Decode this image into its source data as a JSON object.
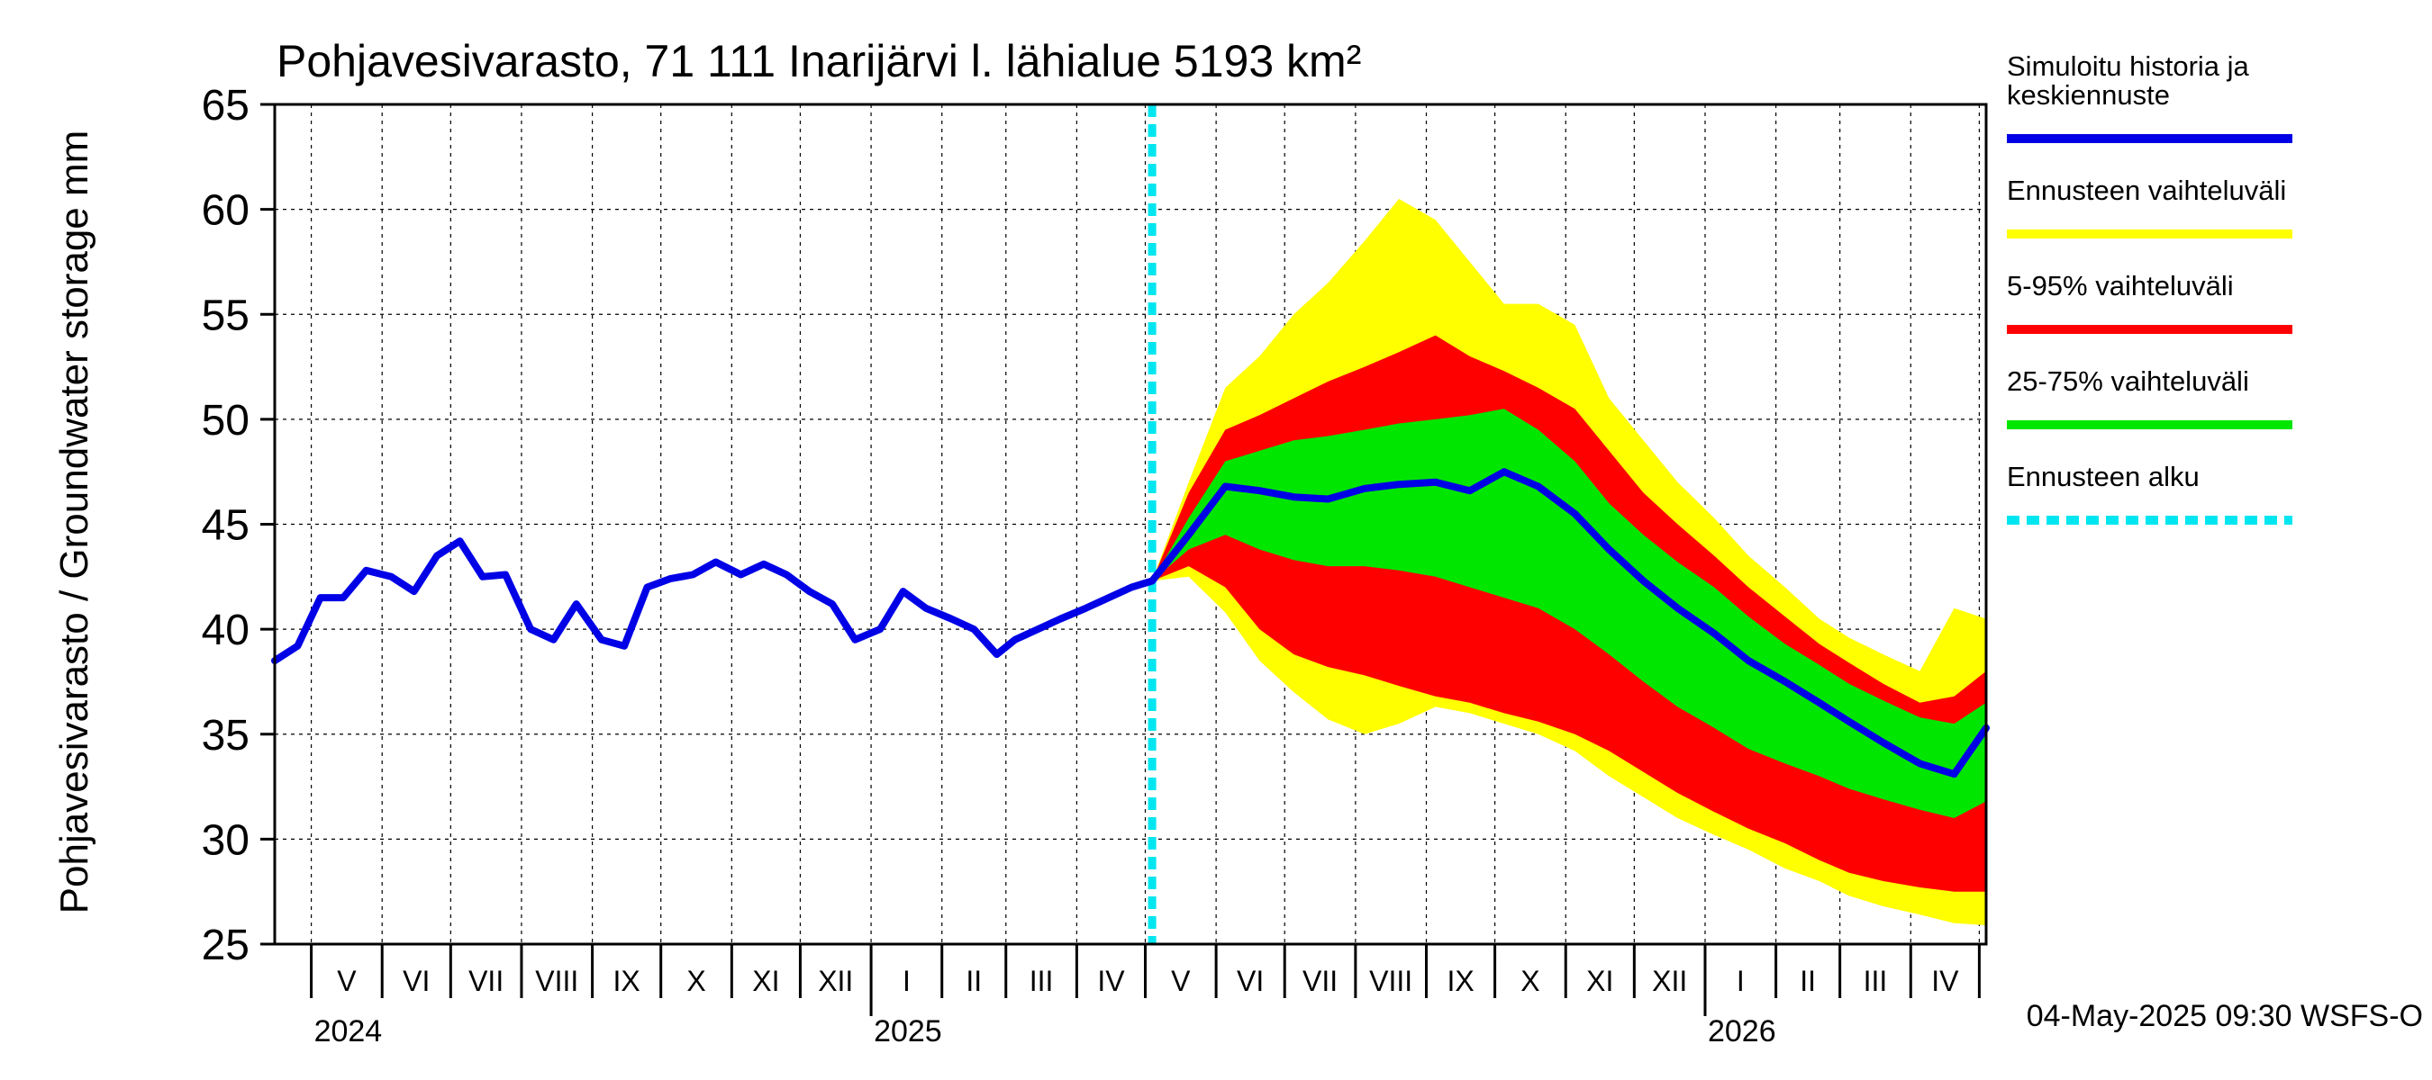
{
  "chart_data": {
    "type": "area",
    "title": "Pohjavesivarasto, 71 111 Inarijärvi l. lähialue 5193 km²",
    "ylabel": "Pohjavesivarasto / Groundwater storage   mm",
    "ylim": [
      25,
      65
    ],
    "yticks": [
      25,
      30,
      35,
      40,
      45,
      50,
      55,
      60,
      65
    ],
    "xlim": [
      "2024-04-15",
      "2026-05-04"
    ],
    "grid": true,
    "forecast_start": "2025-05-04",
    "months": [
      {
        "label": "V",
        "start": "2024-05-01"
      },
      {
        "label": "VI",
        "start": "2024-06-01"
      },
      {
        "label": "VII",
        "start": "2024-07-01"
      },
      {
        "label": "VIII",
        "start": "2024-08-01"
      },
      {
        "label": "IX",
        "start": "2024-09-01"
      },
      {
        "label": "X",
        "start": "2024-10-01"
      },
      {
        "label": "XI",
        "start": "2024-11-01"
      },
      {
        "label": "XII",
        "start": "2024-12-01"
      },
      {
        "label": "I",
        "start": "2025-01-01"
      },
      {
        "label": "II",
        "start": "2025-02-01"
      },
      {
        "label": "III",
        "start": "2025-03-01"
      },
      {
        "label": "IV",
        "start": "2025-04-01"
      },
      {
        "label": "V",
        "start": "2025-05-01"
      },
      {
        "label": "VI",
        "start": "2025-06-01"
      },
      {
        "label": "VII",
        "start": "2025-07-01"
      },
      {
        "label": "VIII",
        "start": "2025-08-01"
      },
      {
        "label": "IX",
        "start": "2025-09-01"
      },
      {
        "label": "X",
        "start": "2025-10-01"
      },
      {
        "label": "XI",
        "start": "2025-11-01"
      },
      {
        "label": "XII",
        "start": "2025-12-01"
      },
      {
        "label": "I",
        "start": "2026-01-01"
      },
      {
        "label": "II",
        "start": "2026-02-01"
      },
      {
        "label": "III",
        "start": "2026-03-01"
      },
      {
        "label": "IV",
        "start": "2026-04-01"
      }
    ],
    "month_end": "2026-05-01",
    "years": [
      {
        "label": "2024",
        "date": "2024-05-01"
      },
      {
        "label": "2025",
        "date": "2025-01-01"
      },
      {
        "label": "2026",
        "date": "2026-01-01"
      }
    ],
    "history": {
      "name": "Simuloitu historia ja keskiennuste",
      "x": [
        "2024-04-15",
        "2024-04-25",
        "2024-05-05",
        "2024-05-15",
        "2024-05-25",
        "2024-06-05",
        "2024-06-15",
        "2024-06-25",
        "2024-07-05",
        "2024-07-15",
        "2024-07-25",
        "2024-08-05",
        "2024-08-15",
        "2024-08-25",
        "2024-09-05",
        "2024-09-15",
        "2024-09-25",
        "2024-10-05",
        "2024-10-15",
        "2024-10-25",
        "2024-11-05",
        "2024-11-15",
        "2024-11-25",
        "2024-12-05",
        "2024-12-15",
        "2024-12-25",
        "2025-01-05",
        "2025-01-15",
        "2025-01-25",
        "2025-02-05",
        "2025-02-15",
        "2025-02-25",
        "2025-03-05",
        "2025-03-15",
        "2025-03-25",
        "2025-04-05",
        "2025-04-15",
        "2025-04-25",
        "2025-05-04"
      ],
      "y": [
        38.5,
        39.2,
        41.5,
        41.5,
        42.8,
        42.5,
        41.8,
        43.5,
        44.2,
        42.5,
        42.6,
        40.0,
        39.5,
        41.2,
        39.5,
        39.2,
        42.0,
        42.4,
        42.6,
        43.2,
        42.6,
        43.1,
        42.6,
        41.8,
        41.2,
        39.5,
        40.0,
        41.8,
        41.0,
        40.5,
        40.0,
        38.8,
        39.5,
        40.0,
        40.5,
        41.0,
        41.5,
        42.0,
        42.3
      ]
    },
    "forecast": {
      "x": [
        "2025-05-04",
        "2025-05-20",
        "2025-06-05",
        "2025-06-20",
        "2025-07-05",
        "2025-07-20",
        "2025-08-05",
        "2025-08-20",
        "2025-09-05",
        "2025-09-20",
        "2025-10-05",
        "2025-10-20",
        "2025-11-05",
        "2025-11-20",
        "2025-12-05",
        "2025-12-20",
        "2026-01-05",
        "2026-01-20",
        "2026-02-05",
        "2026-02-20",
        "2026-03-05",
        "2026-03-20",
        "2026-04-05",
        "2026-04-20",
        "2026-05-04"
      ],
      "median": [
        42.3,
        44.5,
        46.8,
        46.6,
        46.3,
        46.2,
        46.7,
        46.9,
        47.0,
        46.6,
        47.5,
        46.8,
        45.5,
        43.8,
        42.3,
        41.0,
        39.8,
        38.5,
        37.5,
        36.5,
        35.6,
        34.6,
        33.6,
        33.1,
        35.3
      ],
      "p25": [
        42.3,
        43.8,
        44.5,
        43.8,
        43.3,
        43.0,
        43.0,
        42.8,
        42.5,
        42.0,
        41.5,
        41.0,
        40.0,
        38.8,
        37.5,
        36.3,
        35.3,
        34.3,
        33.6,
        33.0,
        32.4,
        31.9,
        31.4,
        31.0,
        31.8
      ],
      "p75": [
        42.3,
        45.3,
        48.0,
        48.5,
        49.0,
        49.2,
        49.5,
        49.8,
        50.0,
        50.2,
        50.5,
        49.5,
        48.0,
        46.0,
        44.5,
        43.2,
        42.0,
        40.6,
        39.3,
        38.3,
        37.4,
        36.6,
        35.8,
        35.5,
        36.5
      ],
      "p5": [
        42.3,
        43.0,
        42.0,
        40.0,
        38.8,
        38.2,
        37.8,
        37.3,
        36.8,
        36.5,
        36.0,
        35.6,
        35.0,
        34.2,
        33.2,
        32.2,
        31.3,
        30.5,
        29.8,
        29.0,
        28.4,
        28.0,
        27.7,
        27.5,
        27.5
      ],
      "p95": [
        42.3,
        46.5,
        49.5,
        50.2,
        51.0,
        51.8,
        52.5,
        53.2,
        54.0,
        53.0,
        52.3,
        51.5,
        50.5,
        48.5,
        46.5,
        45.0,
        43.5,
        42.0,
        40.6,
        39.3,
        38.4,
        37.4,
        36.5,
        36.8,
        38.0
      ],
      "min": [
        42.3,
        42.5,
        40.8,
        38.5,
        37.0,
        35.7,
        35.0,
        35.5,
        36.3,
        36.0,
        35.5,
        35.0,
        34.2,
        33.0,
        32.0,
        31.0,
        30.2,
        29.5,
        28.6,
        28.0,
        27.3,
        26.8,
        26.4,
        26.0,
        25.9
      ],
      "max": [
        42.3,
        47.0,
        51.5,
        53.0,
        55.0,
        56.5,
        58.5,
        60.5,
        59.5,
        57.5,
        55.5,
        55.5,
        54.5,
        51.0,
        49.0,
        47.0,
        45.3,
        43.5,
        42.0,
        40.5,
        39.6,
        38.8,
        38.0,
        41.0,
        40.5
      ]
    },
    "colors": {
      "history": "#0000e6",
      "range_full": "#ffff00",
      "range_5_95": "#ff0000",
      "range_25_75": "#00e600",
      "forecast_start": "#00e6f0"
    },
    "legend": {
      "placement": "right",
      "items": [
        {
          "label_lines": [
            "Simuloitu historia ja",
            "keskiennuste"
          ],
          "color": "#0000e6",
          "style": "solid"
        },
        {
          "label_lines": [
            "Ennusteen vaihteluväli"
          ],
          "color": "#ffff00",
          "style": "solid"
        },
        {
          "label_lines": [
            "5-95% vaihteluväli"
          ],
          "color": "#ff0000",
          "style": "solid"
        },
        {
          "label_lines": [
            "25-75% vaihteluväli"
          ],
          "color": "#00e600",
          "style": "solid"
        },
        {
          "label_lines": [
            "Ennusteen alku"
          ],
          "color": "#00e6f0",
          "style": "dashed"
        }
      ]
    },
    "footer": "04-May-2025 09:30 WSFS-O"
  }
}
